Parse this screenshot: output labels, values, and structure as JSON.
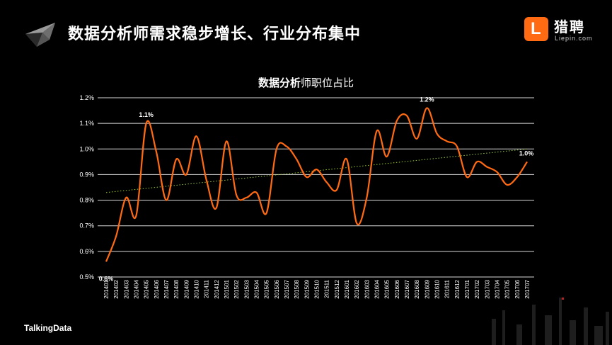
{
  "slide": {
    "title": "数据分析师需求稳步增长、行业分布集中",
    "brand_cn": "猎聘",
    "brand_en": "Liepin.com",
    "brand_badge": "L",
    "footer": "TalkingData"
  },
  "colors": {
    "line": "#ff6a13",
    "trend": "#9acd32",
    "grid": "#d9d9d9",
    "background": "#000000"
  },
  "chart_data": {
    "type": "line",
    "title_bold": "数据分析",
    "title_rest": "师职位占比",
    "ylim": [
      0.5,
      1.2
    ],
    "yticks": [
      "0.5%",
      "0.6%",
      "0.7%",
      "0.8%",
      "0.9%",
      "1.0%",
      "1.1%",
      "1.2%"
    ],
    "ytick_values": [
      0.5,
      0.6,
      0.7,
      0.8,
      0.9,
      1.0,
      1.1,
      1.2
    ],
    "grid": true,
    "categories": [
      "201401",
      "201402",
      "201403",
      "201404",
      "201405",
      "201406",
      "201407",
      "201408",
      "201409",
      "201410",
      "201411",
      "201412",
      "201501",
      "201502",
      "201503",
      "201504",
      "201505",
      "201506",
      "201507",
      "201508",
      "201509",
      "201510",
      "201511",
      "201512",
      "201601",
      "201602",
      "201603",
      "201604",
      "201605",
      "201606",
      "201607",
      "201608",
      "201609",
      "201610",
      "201611",
      "201612",
      "201701",
      "201702",
      "201703",
      "201704",
      "201705",
      "201706",
      "201707"
    ],
    "series": [
      {
        "values": [
          0.56,
          0.66,
          0.81,
          0.74,
          1.1,
          0.99,
          0.8,
          0.96,
          0.9,
          1.05,
          0.88,
          0.77,
          1.03,
          0.82,
          0.81,
          0.83,
          0.75,
          1.0,
          1.01,
          0.96,
          0.89,
          0.92,
          0.87,
          0.84,
          0.96,
          0.71,
          0.81,
          1.07,
          0.97,
          1.11,
          1.13,
          1.04,
          1.16,
          1.06,
          1.03,
          1.01,
          0.89,
          0.95,
          0.93,
          0.91,
          0.86,
          0.89,
          0.95
        ]
      }
    ],
    "trendline": [
      0.83,
      1.0
    ],
    "data_labels": [
      {
        "index": 0,
        "text": "0.6%"
      },
      {
        "index": 4,
        "text": "1.1%"
      },
      {
        "index": 32,
        "text": "1.2%"
      },
      {
        "index": 42,
        "text": "1.0%"
      }
    ]
  }
}
